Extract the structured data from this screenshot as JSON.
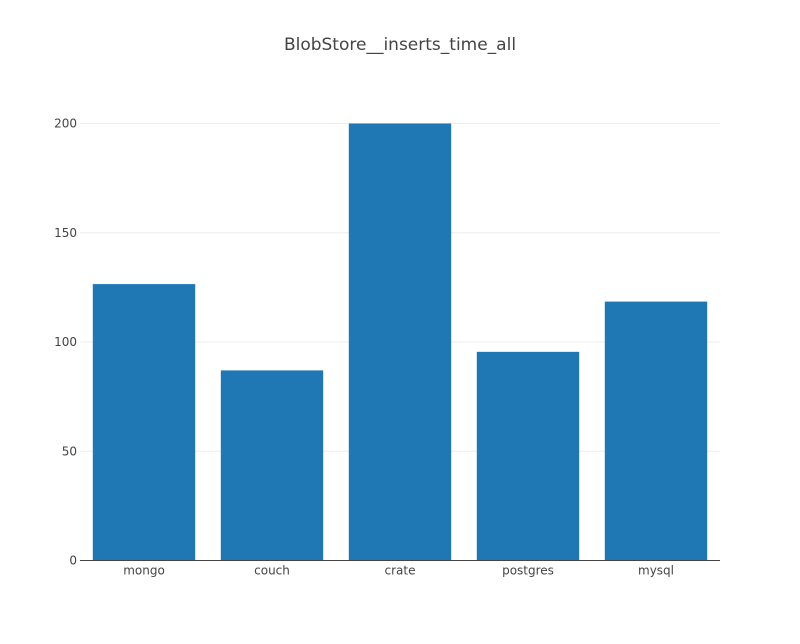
{
  "chart_data": {
    "type": "bar",
    "title": "BlobStore__inserts_time_all",
    "xlabel": "",
    "ylabel": "",
    "categories": [
      "mongo",
      "couch",
      "crate",
      "postgres",
      "mysql"
    ],
    "series": [
      {
        "values": [
          126.5,
          87,
          200,
          95.5,
          118.5
        ],
        "color": "#1f77b4"
      }
    ],
    "ylim": [
      0,
      200
    ],
    "yticks": [
      0,
      50,
      100,
      150,
      200
    ],
    "grid": true,
    "legend": "none"
  }
}
